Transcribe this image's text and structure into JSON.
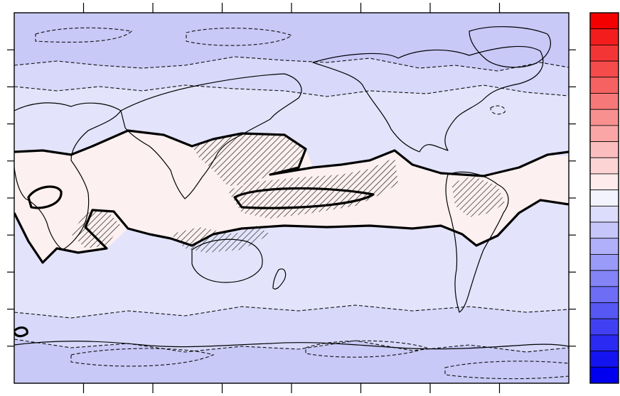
{
  "map": {
    "projection": "equirectangular",
    "longitude_range": [
      0,
      360
    ],
    "latitude_range": [
      -90,
      90
    ],
    "x_tick_count": 8,
    "y_tick_count": 10,
    "fill_levels": [
      {
        "id": "L1",
        "color": "#c8c9f7"
      },
      {
        "id": "L2",
        "color": "#d7d8fa"
      },
      {
        "id": "L3",
        "color": "#e3e4fb"
      },
      {
        "id": "L4",
        "color": "#eff0fd"
      },
      {
        "id": "L5",
        "color": "#fdf0f0"
      }
    ],
    "contours": {
      "zero_line": "solid-bold",
      "negative_levels": "dashed",
      "coastlines": "solid-thin"
    },
    "hatching": "diagonal"
  },
  "colorbar": {
    "orientation": "vertical",
    "colors": [
      "#f40000",
      "#f31d1d",
      "#f43535",
      "#f54b4b",
      "#f66262",
      "#f77878",
      "#f99090",
      "#faa6a6",
      "#fbbdbd",
      "#fcd4d4",
      "#feebeb",
      "#f3f3fe",
      "#dcdcfd",
      "#c6c6fb",
      "#b0b0fa",
      "#9a9af8",
      "#8484f7",
      "#6d6df6",
      "#5757f4",
      "#4141f3",
      "#2a2af2",
      "#1414f0",
      "#0000ee"
    ]
  }
}
